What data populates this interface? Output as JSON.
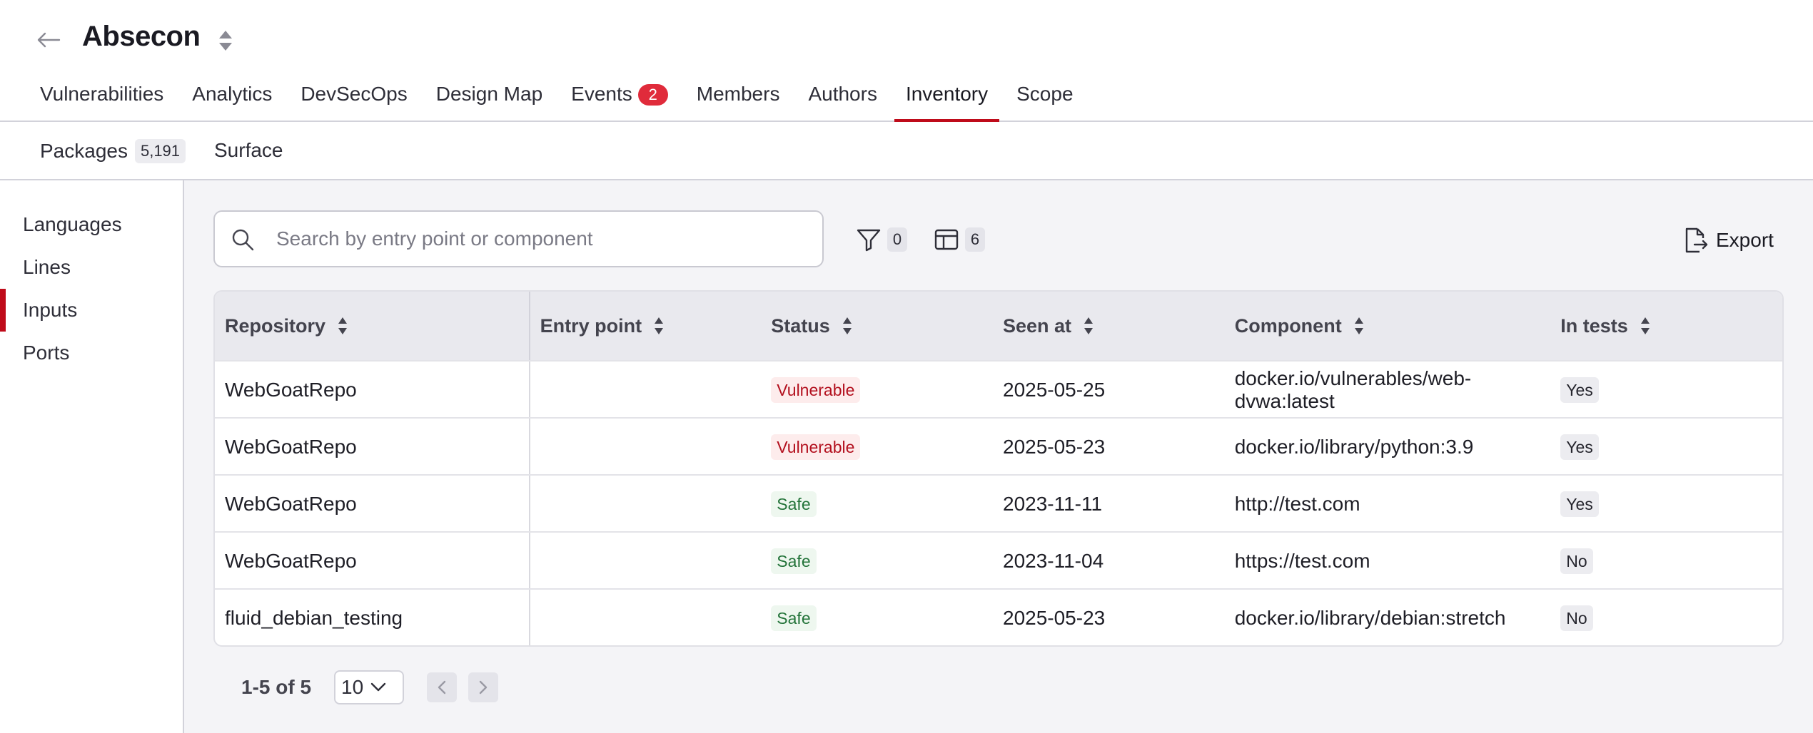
{
  "header": {
    "title": "Absecon",
    "tabs": [
      {
        "label": "Vulnerabilities"
      },
      {
        "label": "Analytics"
      },
      {
        "label": "DevSecOps"
      },
      {
        "label": "Design Map"
      },
      {
        "label": "Events",
        "badge": "2"
      },
      {
        "label": "Members"
      },
      {
        "label": "Authors"
      },
      {
        "label": "Inventory",
        "active": true
      },
      {
        "label": "Scope"
      }
    ]
  },
  "subheader": {
    "packages_label": "Packages",
    "packages_count": "5,191",
    "surface_label": "Surface"
  },
  "sidebar": {
    "items": [
      {
        "label": "Languages"
      },
      {
        "label": "Lines"
      },
      {
        "label": "Inputs",
        "active": true
      },
      {
        "label": "Ports"
      }
    ]
  },
  "toolbar": {
    "search_placeholder": "Search by entry point or component",
    "filter_count": "0",
    "columns_count": "6",
    "export_label": "Export"
  },
  "table": {
    "headers": [
      "Repository",
      "Entry point",
      "Status",
      "Seen at",
      "Component",
      "In tests"
    ],
    "rows": [
      {
        "repository": "WebGoatRepo",
        "entry_point": "",
        "status": "Vulnerable",
        "seen_at": "2025-05-25",
        "component": "docker.io/vulnerables/web-dvwa:latest",
        "in_tests": "Yes"
      },
      {
        "repository": "WebGoatRepo",
        "entry_point": "",
        "status": "Vulnerable",
        "seen_at": "2025-05-23",
        "component": "docker.io/library/python:3.9",
        "in_tests": "Yes"
      },
      {
        "repository": "WebGoatRepo",
        "entry_point": "",
        "status": "Safe",
        "seen_at": "2023-11-11",
        "component": "http://test.com",
        "in_tests": "Yes"
      },
      {
        "repository": "WebGoatRepo",
        "entry_point": "",
        "status": "Safe",
        "seen_at": "2023-11-04",
        "component": "https://test.com",
        "in_tests": "No"
      },
      {
        "repository": "fluid_debian_testing",
        "entry_point": "",
        "status": "Safe",
        "seen_at": "2025-05-23",
        "component": "docker.io/library/debian:stretch",
        "in_tests": "No"
      }
    ]
  },
  "pagination": {
    "range": "1-5 of 5",
    "page_size": "10"
  },
  "colors": {
    "accent": "#bf0b1a",
    "badge_red": "#e02b3b",
    "vulnerable_text": "#b3101e",
    "safe_text": "#24743a"
  },
  "icons": {
    "back": "arrow-left-icon",
    "title_sort": "sort-icon",
    "search": "search-icon",
    "filter": "filter-icon",
    "columns": "columns-icon",
    "export": "export-icon"
  }
}
